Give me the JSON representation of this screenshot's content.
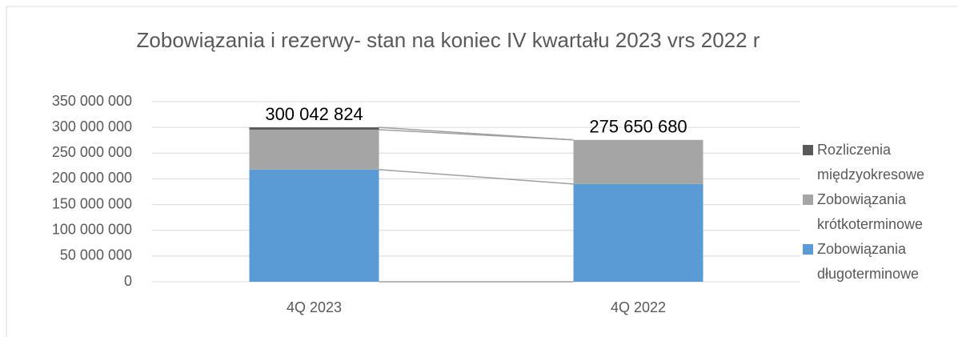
{
  "chart_data": {
    "type": "stacked-bar",
    "title": "Zobowiązania i rezerwy- stan na koniec IV kwartału 2023 vrs 2022 r",
    "categories": [
      "4Q 2023",
      "4Q 2022"
    ],
    "series": [
      {
        "name": "Zobowiązania długoterminowe",
        "color": "#5b9bd5",
        "values": [
          218000000,
          190000000
        ]
      },
      {
        "name": "Zobowiązania krótkoterminowe",
        "color": "#a5a5a5",
        "values": [
          77600000,
          85650680
        ]
      },
      {
        "name": "Rozliczenia międzyokresowe",
        "color": "#595959",
        "values": [
          4442824,
          0
        ]
      }
    ],
    "totals": [
      300042824,
      275650680
    ],
    "total_labels": [
      "300 042 824",
      "275 650 680"
    ],
    "ylim": [
      0,
      350000000
    ],
    "yticks": [
      0,
      {
        "value": 50000000,
        "label": "50 000 000"
      },
      {
        "value": 100000000,
        "label": "100 000 000"
      },
      {
        "value": 150000000,
        "label": "150 000 000"
      },
      {
        "value": 200000000,
        "label": "200 000 000"
      },
      {
        "value": 250000000,
        "label": "250 000 000"
      },
      {
        "value": 300000000,
        "label": "300 000 000"
      },
      {
        "value": 350000000,
        "label": "350 000 000"
      }
    ],
    "grid": true,
    "legend": "right"
  }
}
